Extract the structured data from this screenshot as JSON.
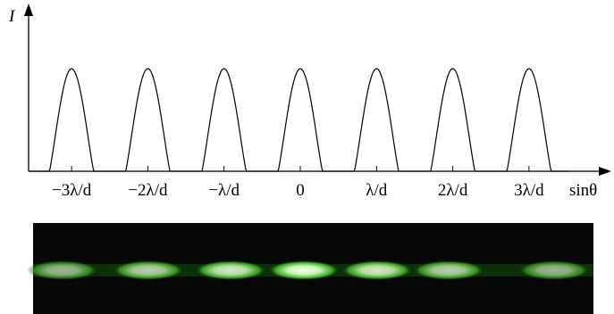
{
  "axis": {
    "y_label": "I",
    "x_label": "sinθ"
  },
  "ticks": [
    "−3λ/d",
    "−2λ/d",
    "−λ/d",
    "0",
    "λ/d",
    "2λ/d",
    "3λ/d"
  ]
}
